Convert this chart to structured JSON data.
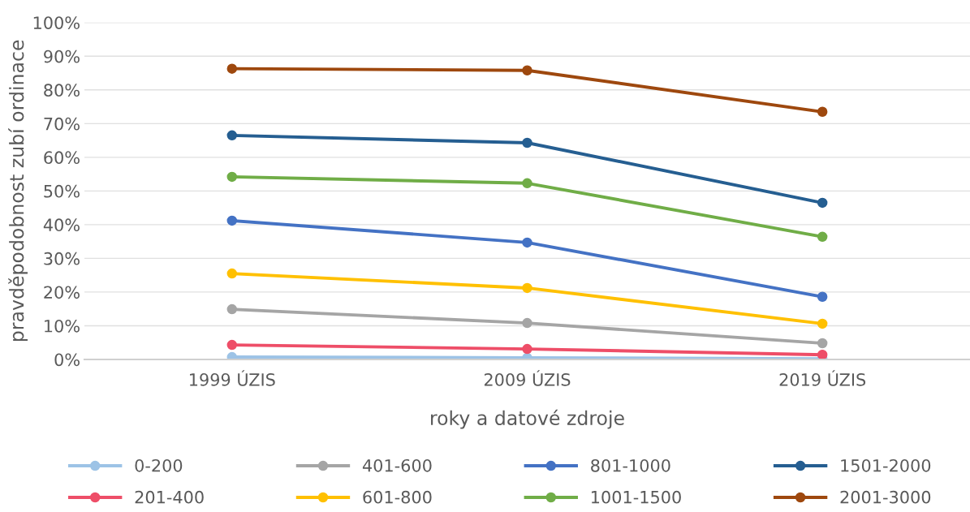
{
  "chart_data": {
    "type": "line",
    "xlabel": "roky a datové zdroje",
    "ylabel": "pravděpodobnost zubí ordinace",
    "categories": [
      "1999 ÚZIS",
      "2009 ÚZIS",
      "2019 ÚZIS"
    ],
    "ylim": [
      0,
      100
    ],
    "yticks": [
      {
        "value": 0,
        "label": "0%"
      },
      {
        "value": 10,
        "label": "10%"
      },
      {
        "value": 20,
        "label": "20%"
      },
      {
        "value": 30,
        "label": "30%"
      },
      {
        "value": 40,
        "label": "40%"
      },
      {
        "value": 50,
        "label": "50%"
      },
      {
        "value": 60,
        "label": "60%"
      },
      {
        "value": 70,
        "label": "70%"
      },
      {
        "value": 80,
        "label": "80%"
      },
      {
        "value": 90,
        "label": "90%"
      },
      {
        "value": 100,
        "label": "100%"
      }
    ],
    "grid": "y",
    "legend": "bottom",
    "marker": "circle",
    "line_style": "solid",
    "series": [
      {
        "name": "0-200",
        "color": "#9dc3e6",
        "values": [
          0.7,
          0.5,
          0.2
        ]
      },
      {
        "name": "201-400",
        "color": "#ee4e68",
        "values": [
          4.3,
          3.1,
          1.4
        ]
      },
      {
        "name": "401-600",
        "color": "#a5a5a5",
        "values": [
          14.9,
          10.8,
          4.8
        ]
      },
      {
        "name": "601-800",
        "color": "#ffc000",
        "values": [
          25.5,
          21.2,
          10.6
        ]
      },
      {
        "name": "801-1000",
        "color": "#4472c4",
        "values": [
          41.2,
          34.7,
          18.6
        ]
      },
      {
        "name": "1001-1500",
        "color": "#70ad47",
        "values": [
          54.2,
          52.3,
          36.4
        ]
      },
      {
        "name": "1501-2000",
        "color": "#255e91",
        "values": [
          66.5,
          64.3,
          46.5
        ]
      },
      {
        "name": "2001-3000",
        "color": "#9e480e",
        "values": [
          86.3,
          85.8,
          73.5
        ]
      }
    ]
  }
}
